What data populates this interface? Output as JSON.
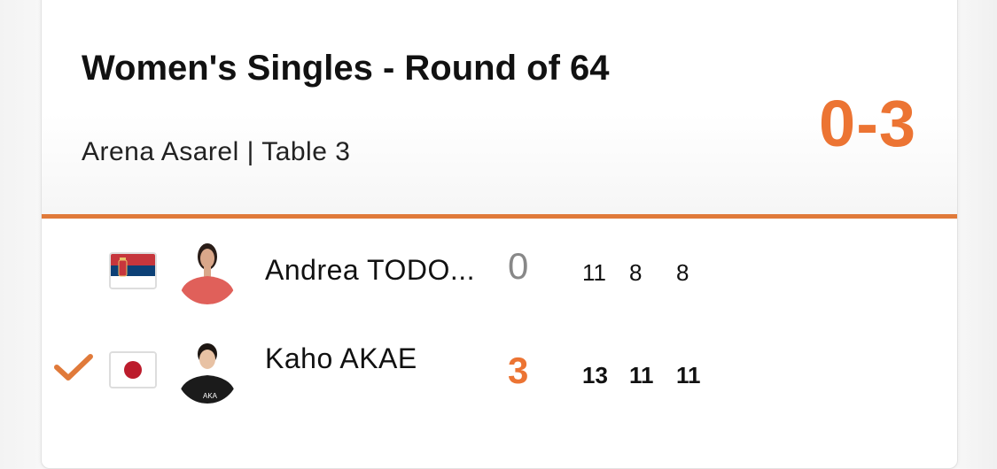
{
  "match": {
    "title": "Women's Singles - Round of 64",
    "venue": "Arena Asarel | Table 3",
    "score": "0-3",
    "accent_color": "#ec7433"
  },
  "players": [
    {
      "name": "Andrea TODO...",
      "country_flag": "serbia-flag",
      "sets": "0",
      "games": [
        "11",
        "8",
        "8"
      ],
      "winner": false
    },
    {
      "name": "Kaho AKAE",
      "country_flag": "japan-flag",
      "sets": "3",
      "games": [
        "13",
        "11",
        "11"
      ],
      "winner": true
    }
  ]
}
